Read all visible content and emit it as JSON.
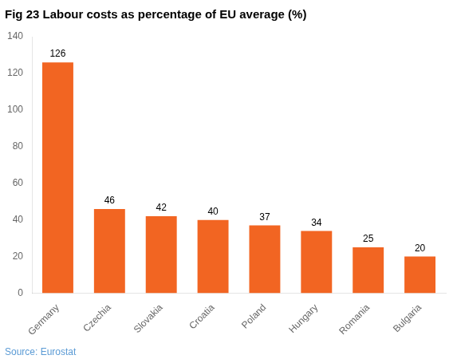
{
  "chart_data": {
    "type": "bar",
    "title": "Fig 23 Labour costs as percentage of EU average (%)",
    "annotation": "Source: Eurostat",
    "categories": [
      "Germany",
      "Czechia",
      "Slovakia",
      "Croatia",
      "Poland",
      "Hungary",
      "Romania",
      "Bulgaria"
    ],
    "values": [
      126,
      46,
      42,
      40,
      37,
      34,
      25,
      20
    ],
    "color": "#F26522",
    "ylim": [
      0,
      140
    ],
    "yticks": [
      0,
      20,
      40,
      60,
      80,
      100,
      120,
      140
    ],
    "grid": false,
    "data_labels": true
  }
}
